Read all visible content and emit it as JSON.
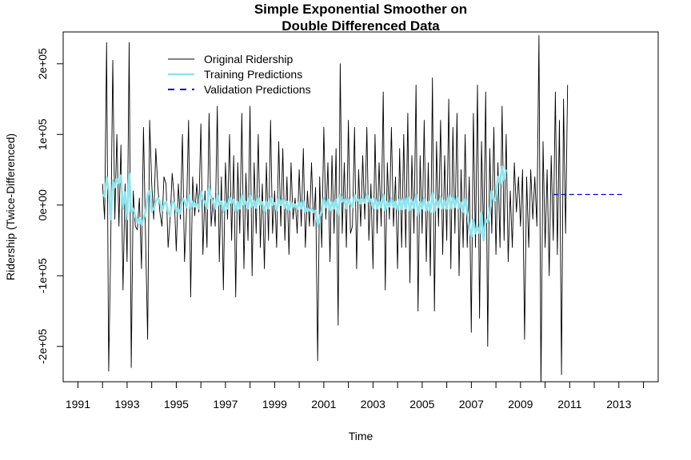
{
  "chart_data": {
    "type": "line",
    "title_line1": "Simple Exponential Smoother on",
    "title_line2": "Double Differenced Data",
    "xlabel": "Time",
    "ylabel": "Ridership (Twice-Differenced)",
    "xlim": [
      1990.4,
      2014.6
    ],
    "ylim": [
      -250000,
      245000
    ],
    "x_ticks": [
      1991,
      1993,
      1995,
      1997,
      1999,
      2001,
      2003,
      2005,
      2007,
      2009,
      2011,
      2013
    ],
    "x_tick_labels": [
      "1991",
      "1993",
      "1995",
      "1997",
      "1999",
      "2001",
      "2003",
      "2005",
      "2007",
      "2009",
      "2011",
      "2013"
    ],
    "y_ticks": [
      -200000,
      -100000,
      0,
      100000,
      200000
    ],
    "y_tick_labels": [
      "-2e+05",
      "-1e+05",
      "0e+00",
      "1e+05",
      "2e+05"
    ],
    "legend_position": "top-left",
    "grid": false,
    "series": [
      {
        "name": "Original Ridership",
        "color": "#000000",
        "style": "solid",
        "x_start": 1992.0,
        "x_step": 0.08333,
        "values": [
          30000,
          -20000,
          230000,
          -235000,
          -60000,
          205000,
          -20000,
          100000,
          -30000,
          85000,
          -120000,
          30000,
          -80000,
          230000,
          -230000,
          20000,
          -30000,
          -35000,
          10000,
          -90000,
          110000,
          -45000,
          -190000,
          120000,
          30000,
          -20000,
          80000,
          25000,
          -10000,
          -30000,
          40000,
          30000,
          -60000,
          -20000,
          45000,
          10000,
          -65000,
          30000,
          -20000,
          100000,
          -80000,
          -10000,
          120000,
          -130000,
          40000,
          -15000,
          30000,
          -10000,
          115000,
          -70000,
          20000,
          -60000,
          130000,
          -30000,
          10000,
          -30000,
          140000,
          -80000,
          40000,
          -120000,
          60000,
          -20000,
          100000,
          -50000,
          70000,
          -130000,
          60000,
          -40000,
          130000,
          -90000,
          45000,
          -50000,
          140000,
          -100000,
          60000,
          -40000,
          100000,
          -60000,
          30000,
          -90000,
          60000,
          -50000,
          120000,
          -40000,
          20000,
          -60000,
          90000,
          -30000,
          80000,
          -50000,
          40000,
          -70000,
          60000,
          -20000,
          10000,
          -40000,
          50000,
          -30000,
          80000,
          -60000,
          20000,
          -30000,
          60000,
          -30000,
          25000,
          -220000,
          40000,
          -60000,
          110000,
          -20000,
          60000,
          -80000,
          70000,
          -40000,
          80000,
          -170000,
          200000,
          -40000,
          60000,
          -60000,
          120000,
          -40000,
          -30000,
          110000,
          -90000,
          50000,
          -30000,
          70000,
          -20000,
          110000,
          -50000,
          30000,
          -90000,
          100000,
          -40000,
          60000,
          -30000,
          160000,
          -120000,
          60000,
          -20000,
          110000,
          -30000,
          40000,
          -90000,
          80000,
          -60000,
          100000,
          -60000,
          130000,
          -110000,
          70000,
          -40000,
          170000,
          -150000,
          70000,
          -40000,
          120000,
          -80000,
          60000,
          -100000,
          180000,
          -150000,
          90000,
          -30000,
          120000,
          -70000,
          70000,
          -50000,
          150000,
          -90000,
          110000,
          -40000,
          130000,
          -100000,
          50000,
          -60000,
          100000,
          -60000,
          40000,
          -180000,
          130000,
          -60000,
          170000,
          -160000,
          90000,
          -50000,
          160000,
          -200000,
          80000,
          -40000,
          110000,
          -70000,
          60000,
          -60000,
          140000,
          -50000,
          100000,
          -80000,
          20000,
          -60000,
          60000,
          -10000,
          40000,
          -30000,
          50000,
          -190000,
          40000,
          -60000,
          50000,
          -20000,
          40000,
          -30000,
          240000,
          -260000,
          90000,
          -60000,
          50000,
          -100000,
          70000,
          -50000,
          160000,
          -70000,
          120000,
          -240000,
          150000,
          -40000,
          170000
        ]
      },
      {
        "name": "Training Predictions",
        "color": "#8ee5ee",
        "style": "solid",
        "x_start": 1992.0,
        "x_step": 0.08333,
        "values": [
          15000,
          12000,
          40000,
          20000,
          -20000,
          35000,
          25000,
          38000,
          30000,
          42000,
          -5000,
          18000,
          -20000,
          45000,
          -10000,
          -5000,
          -15000,
          -25000,
          -18000,
          -28000,
          -20000,
          -10000,
          15000,
          20000,
          -10000,
          -5000,
          5000,
          10000,
          5000,
          -8000,
          0,
          5000,
          -10000,
          -15000,
          5000,
          3000,
          -10000,
          -5000,
          -12000,
          10000,
          5000,
          -3000,
          15000,
          -5000,
          5000,
          -2000,
          3000,
          -5000,
          20000,
          8000,
          5000,
          -5000,
          25000,
          10000,
          5000,
          -5000,
          15000,
          0,
          5000,
          -10000,
          5000,
          -5000,
          12000,
          3000,
          8000,
          -10000,
          5000,
          -5000,
          15000,
          0,
          5000,
          -5000,
          15000,
          -3000,
          6000,
          -4000,
          12000,
          0,
          4000,
          -10000,
          5000,
          -5000,
          12000,
          0,
          3000,
          -8000,
          10000,
          0,
          8000,
          -5000,
          5000,
          -8000,
          5000,
          -3000,
          1000,
          -6000,
          5000,
          -5000,
          6000,
          -10000,
          -5000,
          -8000,
          -5000,
          -10000,
          -8000,
          -30000,
          -15000,
          -10000,
          10000,
          -3000,
          8000,
          -8000,
          5000,
          -5000,
          8000,
          -15000,
          15000,
          5000,
          8000,
          -5000,
          10000,
          2000,
          -3000,
          15000,
          5000,
          8000,
          2000,
          10000,
          3000,
          15000,
          5000,
          8000,
          -5000,
          10000,
          -5000,
          6000,
          -3000,
          15000,
          -8000,
          5000,
          -2000,
          10000,
          -3000,
          5000,
          -8000,
          8000,
          -6000,
          10000,
          -5000,
          12000,
          -8000,
          7000,
          -4000,
          15000,
          -15000,
          5000,
          -5000,
          10000,
          -8000,
          5000,
          -10000,
          18000,
          -10000,
          8000,
          -3000,
          12000,
          -5000,
          7000,
          -5000,
          15000,
          -5000,
          12000,
          -3000,
          12000,
          -5000,
          4000,
          -10000,
          10000,
          -10000,
          -30000,
          -45000,
          -20000,
          -40000,
          -30000,
          -40000,
          -10000,
          -50000,
          -20000,
          -25000,
          -10000,
          20000,
          5000,
          10000,
          40000,
          30000,
          55000,
          35000,
          50000
        ]
      },
      {
        "name": "Validation Predictions",
        "color": "#0000cd",
        "style": "dashed",
        "x_from": 2010.33,
        "x_to": 2013.25,
        "values": [
          15000,
          15000
        ]
      }
    ]
  }
}
